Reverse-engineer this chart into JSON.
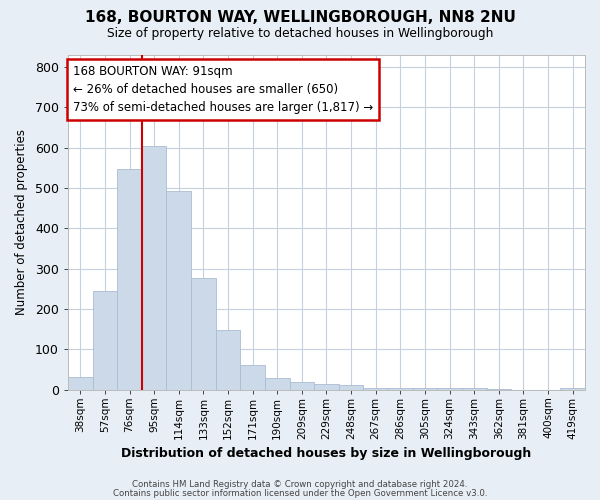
{
  "title": "168, BOURTON WAY, WELLINGBOROUGH, NN8 2NU",
  "subtitle": "Size of property relative to detached houses in Wellingborough",
  "xlabel": "Distribution of detached houses by size in Wellingborough",
  "ylabel": "Number of detached properties",
  "categories": [
    "38sqm",
    "57sqm",
    "76sqm",
    "95sqm",
    "114sqm",
    "133sqm",
    "152sqm",
    "171sqm",
    "190sqm",
    "209sqm",
    "229sqm",
    "248sqm",
    "267sqm",
    "286sqm",
    "305sqm",
    "324sqm",
    "343sqm",
    "362sqm",
    "381sqm",
    "400sqm",
    "419sqm"
  ],
  "values": [
    32,
    245,
    548,
    605,
    493,
    277,
    148,
    62,
    30,
    18,
    15,
    12,
    3,
    4,
    4,
    3,
    4,
    2,
    0,
    0,
    5
  ],
  "bar_color": "#ccd9e8",
  "bar_edge_color": "#aabdd4",
  "vline_idx": 3,
  "vline_color": "#cc0000",
  "ann_line1": "168 BOURTON WAY: 91sqm",
  "ann_line2": "← 26% of detached houses are smaller (650)",
  "ann_line3": "73% of semi-detached houses are larger (1,817) →",
  "annotation_box_color": "#ffffff",
  "annotation_box_edge": "#cc0000",
  "ylim": [
    0,
    830
  ],
  "yticks": [
    0,
    100,
    200,
    300,
    400,
    500,
    600,
    700,
    800
  ],
  "footer1": "Contains HM Land Registry data © Crown copyright and database right 2024.",
  "footer2": "Contains public sector information licensed under the Open Government Licence v3.0.",
  "bg_color": "#e8eef5",
  "plot_bg_color": "#ffffff",
  "grid_color": "#c5d0dc"
}
